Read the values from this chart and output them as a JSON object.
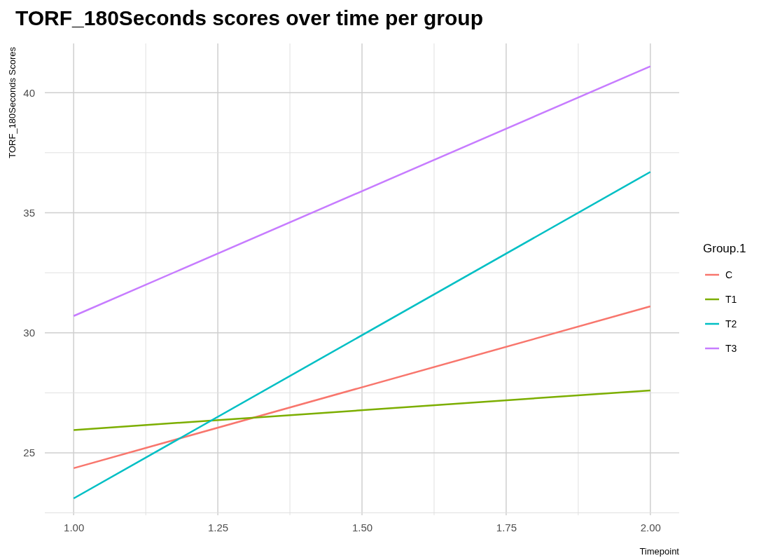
{
  "chart_data": {
    "type": "line",
    "title": "TORF_180Seconds scores over time per group",
    "xlabel": "Timepoint",
    "ylabel": "TORF_180Seconds Scores",
    "legend_title": "Group.1",
    "x": [
      1,
      2
    ],
    "series": [
      {
        "name": "C",
        "color": "#f8766d",
        "values": [
          24.36,
          31.1
        ]
      },
      {
        "name": "T1",
        "color": "#7cae00",
        "values": [
          25.95,
          27.6
        ]
      },
      {
        "name": "T2",
        "color": "#00bfc4",
        "values": [
          23.1,
          36.7
        ]
      },
      {
        "name": "T3",
        "color": "#c77cff",
        "values": [
          30.7,
          41.1
        ]
      }
    ],
    "xlim": [
      0.95,
      2.05
    ],
    "ylim": [
      22.4,
      42.05
    ],
    "xticks": [
      {
        "value": 1,
        "label": "1.00"
      },
      {
        "value": 1.25,
        "label": "1.25"
      },
      {
        "value": 1.5,
        "label": "1.50"
      },
      {
        "value": 1.75,
        "label": "1.75"
      },
      {
        "value": 2,
        "label": "2.00"
      }
    ],
    "yticks": [
      25,
      30,
      35,
      40
    ],
    "grid": true,
    "legend": "right",
    "marker": "none",
    "line_style": "solid"
  }
}
